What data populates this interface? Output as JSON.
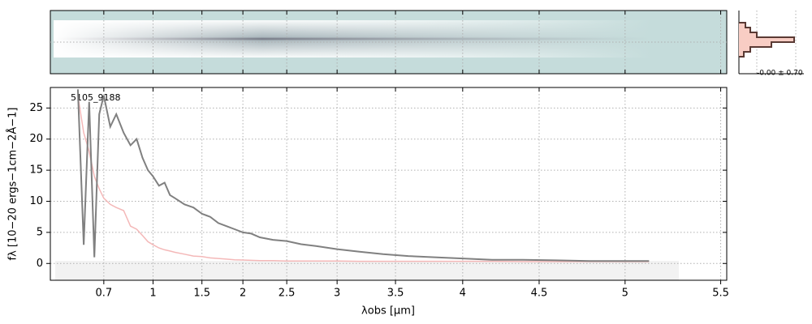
{
  "chart_data": {
    "type": "line",
    "xscale": "prism",
    "label": "5105_9188",
    "xlabel": "λobs [μm]",
    "ylabel": "fλ [10−20 ergs−1cm−2Å−1]",
    "inset_label": "-0.00 ± 0.70",
    "grid": true,
    "xlim": [
      0.52,
      5.53
    ],
    "ylim": [
      -2.7,
      28.3
    ],
    "xticks": [
      0.7,
      1.0,
      1.5,
      2.0,
      2.5,
      3.0,
      3.5,
      4.0,
      4.5,
      5.0,
      5.5
    ],
    "yticks": [
      0,
      5,
      10,
      15,
      20,
      25
    ],
    "x": [
      0.6,
      0.62,
      0.64,
      0.66,
      0.68,
      0.7,
      0.73,
      0.76,
      0.8,
      0.84,
      0.88,
      0.92,
      0.96,
      1.0,
      1.05,
      1.1,
      1.15,
      1.2,
      1.3,
      1.4,
      1.5,
      1.6,
      1.7,
      1.8,
      1.9,
      2.0,
      2.1,
      2.2,
      2.35,
      2.5,
      2.65,
      2.8,
      3.0,
      3.2,
      3.4,
      3.6,
      3.8,
      4.0,
      4.2,
      4.4,
      4.6,
      4.8,
      5.0,
      5.13
    ],
    "series": [
      {
        "color": "#f4b8b8",
        "width": 1.5,
        "values": [
          27,
          21,
          18,
          14,
          12,
          10.5,
          9.5,
          9,
          8.5,
          6,
          5.5,
          4.5,
          3.5,
          3,
          2.5,
          2.2,
          2,
          1.8,
          1.5,
          1.2,
          1.1,
          0.9,
          0.8,
          0.7,
          0.6,
          0.55,
          0.5,
          0.45,
          0.45,
          0.4,
          0.4,
          0.4,
          0.4,
          0.35,
          0.35,
          0.35,
          0.35,
          0.35,
          0.35,
          0.3,
          0.3,
          0.3,
          0.3,
          0.3
        ]
      },
      {
        "color": "#808080",
        "width": 2,
        "values": [
          28,
          3,
          26,
          1,
          24,
          27,
          22,
          24,
          21,
          19,
          20,
          17,
          15,
          14,
          12.5,
          13,
          11,
          10.5,
          9.5,
          9,
          8,
          7.5,
          6.5,
          6,
          5.5,
          5,
          4.8,
          4.2,
          3.8,
          3.6,
          3.1,
          2.8,
          2.3,
          1.9,
          1.5,
          1.2,
          1,
          0.8,
          0.6,
          0.6,
          0.5,
          0.4,
          0.4,
          0.4
        ]
      }
    ]
  }
}
